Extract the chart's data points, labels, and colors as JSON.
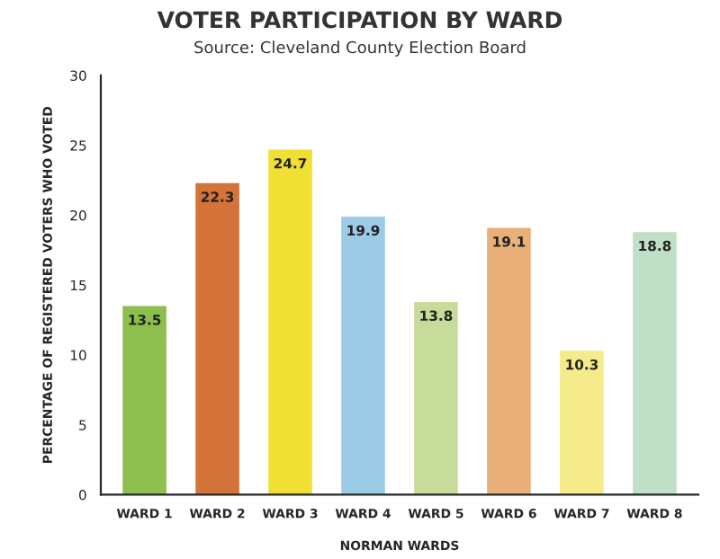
{
  "chart_data": {
    "type": "bar",
    "title": "VOTER PARTICIPATION BY WARD",
    "subtitle": "Source: Cleveland County Election Board",
    "xlabel": "NORMAN WARDS",
    "ylabel": "PERCENTAGE OF REGISTERED VOTERS WHO VOTED",
    "categories": [
      "WARD 1",
      "WARD 2",
      "WARD 3",
      "WARD 4",
      "WARD 5",
      "WARD 6",
      "WARD 7",
      "WARD 8"
    ],
    "values": [
      13.5,
      22.3,
      24.7,
      19.9,
      13.8,
      19.1,
      10.3,
      18.8
    ],
    "colors": [
      "#8dbf4e",
      "#d4733a",
      "#f0e033",
      "#9ccbe6",
      "#c6dc98",
      "#e9b07a",
      "#f5eb8a",
      "#bfe0c6"
    ],
    "ylim": [
      0,
      30
    ],
    "yticks": [
      0,
      5,
      10,
      15,
      20,
      25,
      30
    ],
    "data_labels": true
  }
}
